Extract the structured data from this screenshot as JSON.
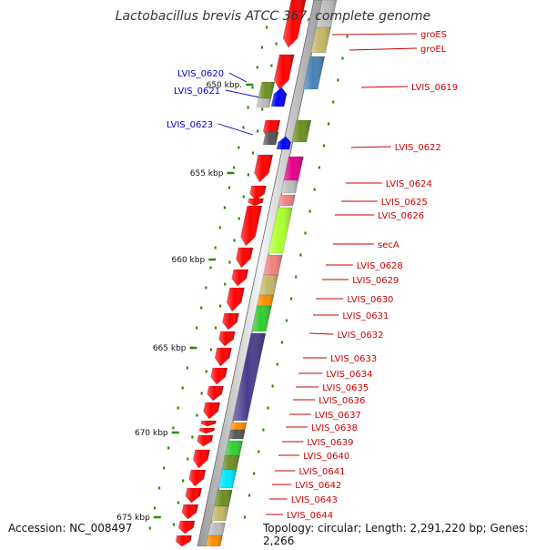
{
  "title": "Lactobacillus brevis ATCC 367, complete genome",
  "footer": {
    "accession": "Accession: NC_008497",
    "topology": "Topology: circular; Length: 2,291,220 bp; Genes: 2,266"
  },
  "colors": {
    "red": "#ff0000",
    "label_red": "#cc0000",
    "label_blue": "#0000cc",
    "tick_green": "#2e8b00",
    "olive": "#6b8e23",
    "khaki": "#c4b86a",
    "steel_blue": "#4682b4",
    "magenta": "#e6008a",
    "pink": "#f08080",
    "lime": "#adff2f",
    "orange": "#ff8c00",
    "green": "#32cd32",
    "purple": "#483d8b",
    "cyan": "#00e5ff",
    "gray": "#bdbdbd",
    "dark_gray": "#555555",
    "blue": "#0000ff"
  },
  "scale_labels": [
    "650 kbp.",
    "655 kbp",
    "660 kbp",
    "665 kbp",
    "670 kbp",
    "675 kbp"
  ],
  "gene_labels_right": [
    "groES",
    "groEL",
    "LVIS_0619",
    "LVIS_0622",
    "LVIS_0624",
    "LVIS_0625",
    "LVIS_0626",
    "secA",
    "LVIS_0628",
    "LVIS_0629",
    "LVIS_0630",
    "LVIS_0631",
    "LVIS_0632",
    "LVIS_0633",
    "LVIS_0634",
    "LVIS_0635",
    "LVIS_0636",
    "LVIS_0637",
    "LVIS_0638",
    "LVIS_0639",
    "LVIS_0640",
    "LVIS_0641",
    "LVIS_0642",
    "LVIS_0643",
    "LVIS_0644"
  ],
  "gene_labels_left": [
    "LVIS_0620",
    "LVIS_0621",
    "LVIS_0623"
  ]
}
